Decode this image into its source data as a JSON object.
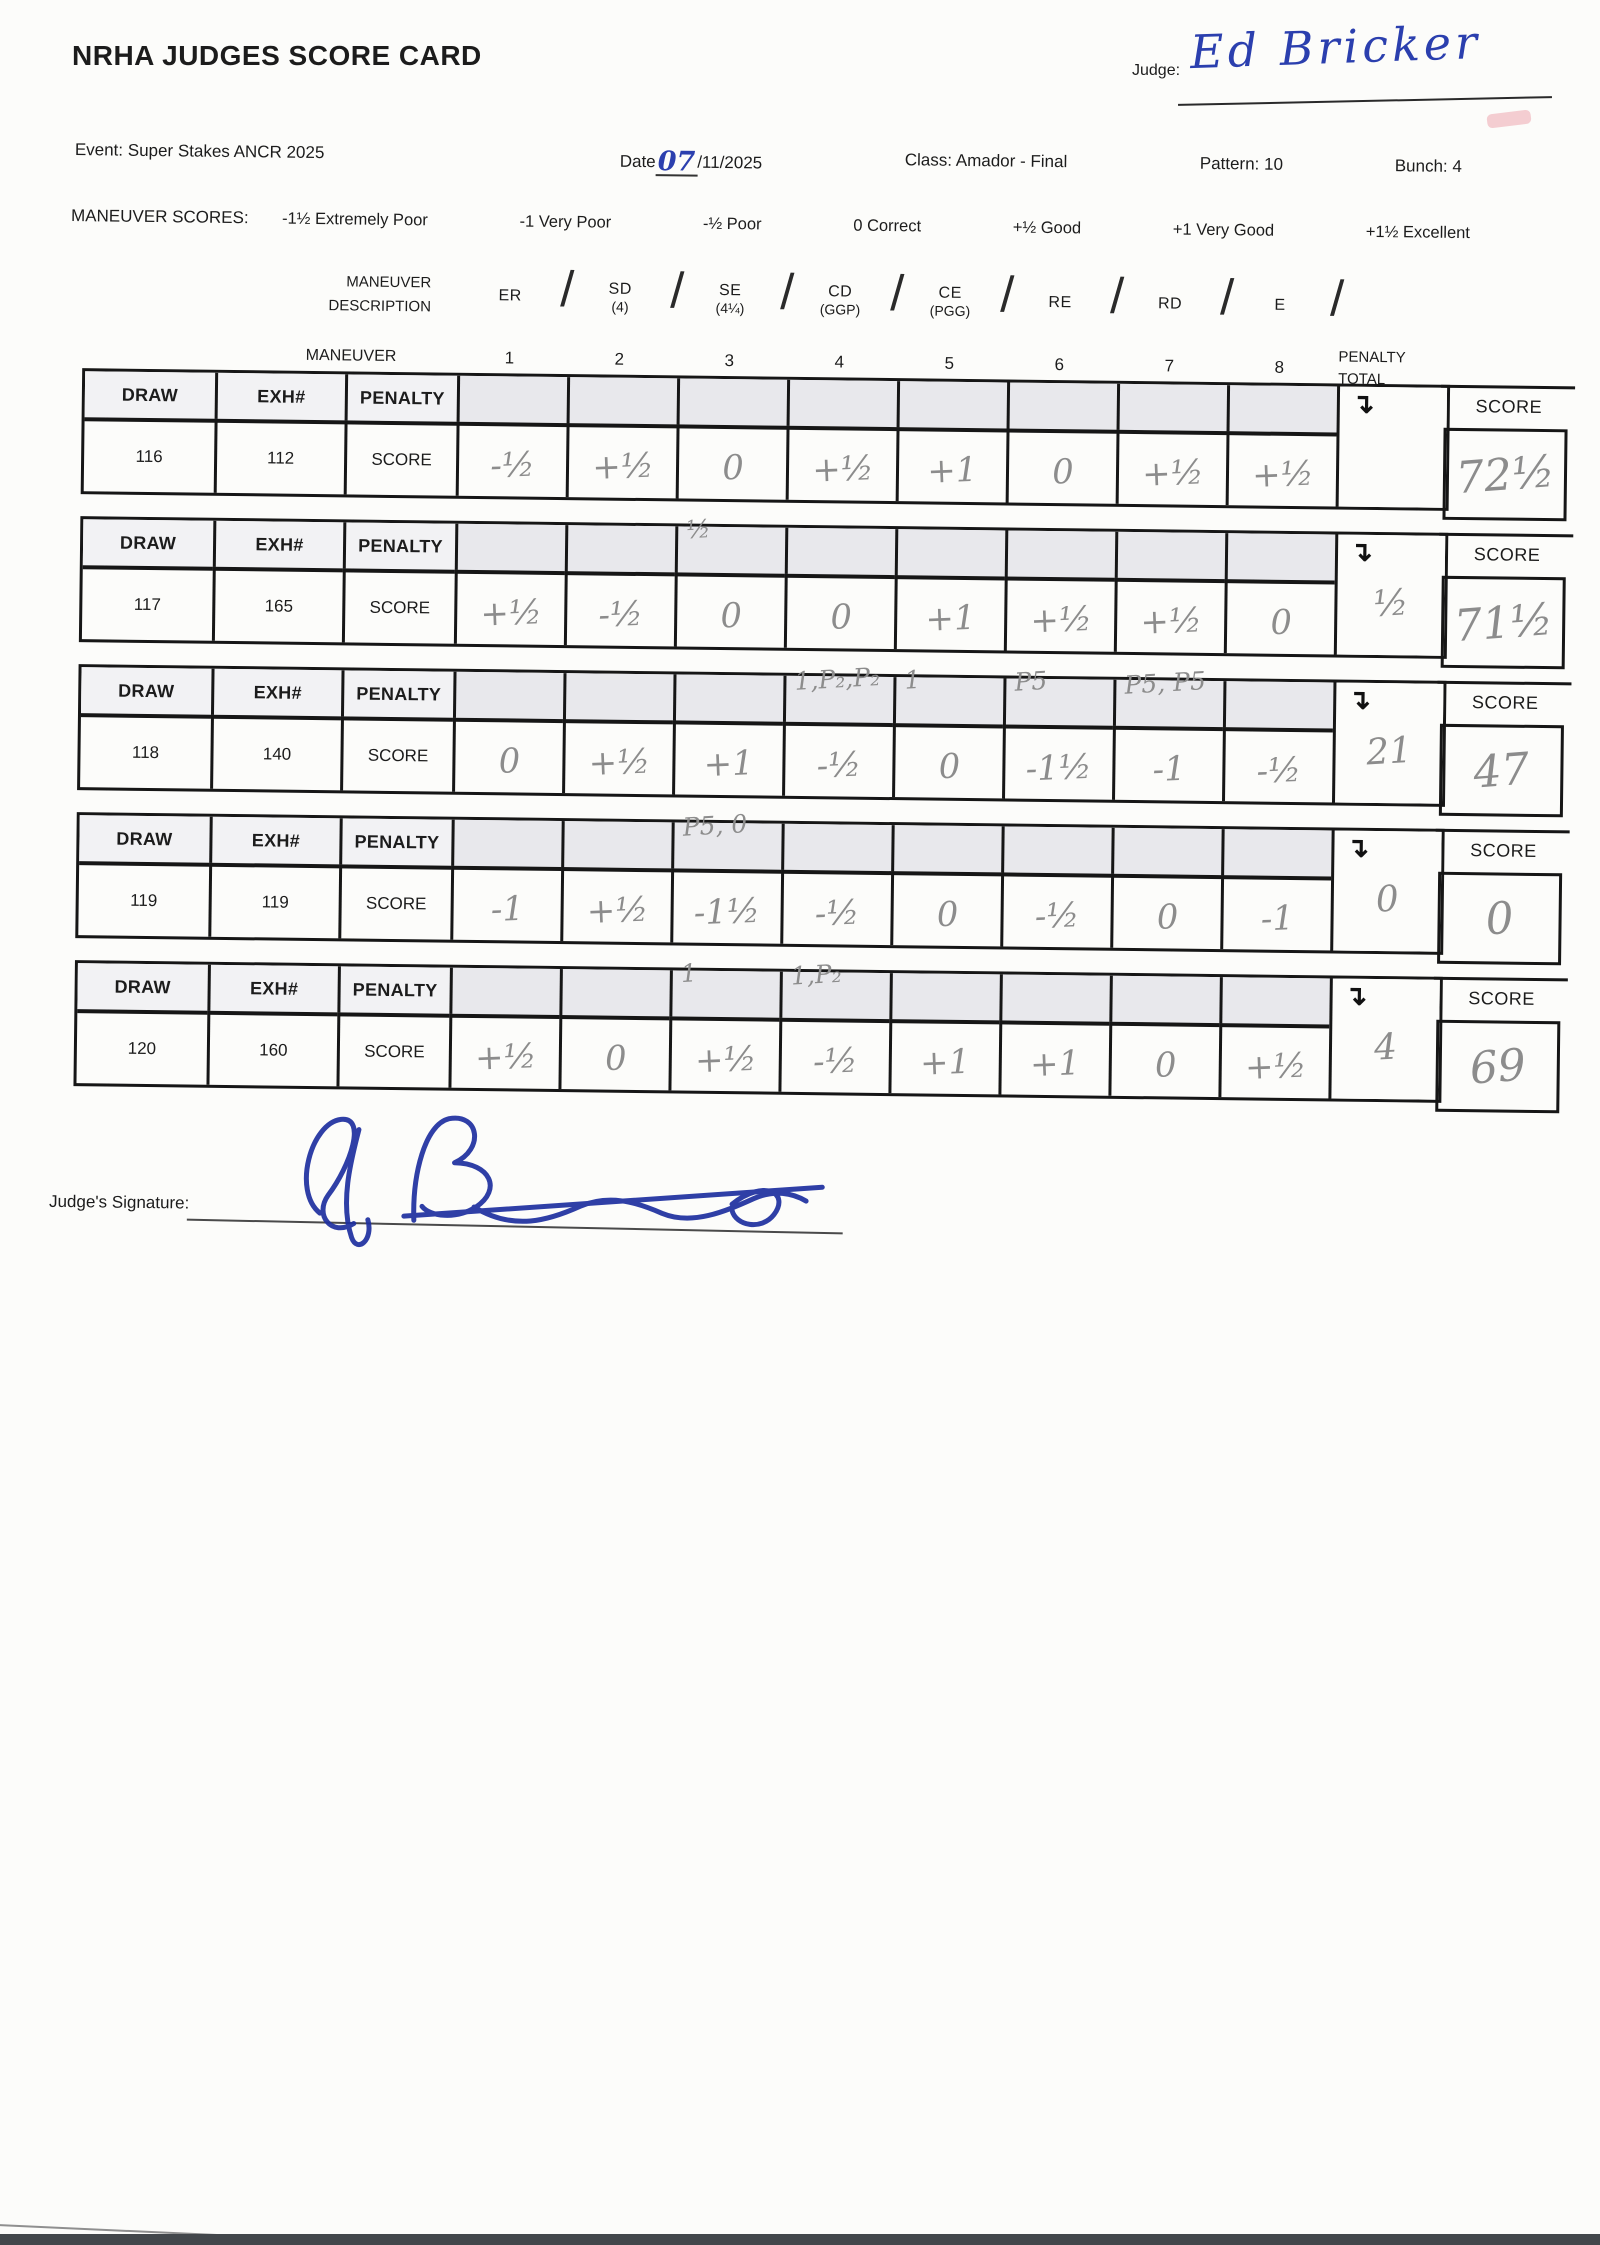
{
  "page": {
    "title": "NRHA JUDGES SCORE CARD"
  },
  "header": {
    "judge_label": "Judge:",
    "judge_name": "Ed Bricker",
    "event": "Event: Super Stakes ANCR 2025",
    "date_label": "Date",
    "date_day": "07",
    "date_rest": "/11/2025",
    "class": "Class: Amador - Final",
    "pattern": "Pattern: 10",
    "bunch": "Bunch: 4"
  },
  "legend": {
    "label": "MANEUVER SCORES:",
    "items": [
      "-1½ Extremely Poor",
      "-1 Very Poor",
      "-½ Poor",
      "0 Correct",
      "+½ Good",
      "+1 Very Good",
      "+1½ Excellent"
    ]
  },
  "maneuver_header": {
    "description_label_line1": "MANEUVER",
    "description_label_line2": "DESCRIPTION",
    "maneuver_label": "MANEUVER",
    "separator": "/",
    "descriptions": [
      {
        "abbr": "ER",
        "sub": ""
      },
      {
        "abbr": "SD",
        "sub": "(4)"
      },
      {
        "abbr": "SE",
        "sub": "(4¼)"
      },
      {
        "abbr": "CD",
        "sub": "(GGP)"
      },
      {
        "abbr": "CE",
        "sub": "(PGG)"
      },
      {
        "abbr": "RE",
        "sub": ""
      },
      {
        "abbr": "RD",
        "sub": ""
      },
      {
        "abbr": "E",
        "sub": ""
      }
    ],
    "numbers": [
      "1",
      "2",
      "3",
      "4",
      "5",
      "6",
      "7",
      "8"
    ],
    "penalty_total_line1": "PENALTY",
    "penalty_total_line2": "TOTAL"
  },
  "labels": {
    "draw": "DRAW",
    "exh": "EXH#",
    "penalty": "PENALTY",
    "score_row": "SCORE",
    "score_col": "SCORE",
    "arrow_icon": "↴"
  },
  "tables": [
    {
      "draw": "116",
      "exh": "112",
      "penalties": [
        "",
        "",
        "",
        "",
        "",
        "",
        "",
        ""
      ],
      "scores": [
        "-½",
        "+½",
        "0",
        "+½",
        "+1",
        "0",
        "+½",
        "+½"
      ],
      "penalty_total": "",
      "score": "72½"
    },
    {
      "draw": "117",
      "exh": "165",
      "penalties": [
        "",
        "",
        "½",
        "",
        "",
        "",
        "",
        ""
      ],
      "scores": [
        "+½",
        "-½",
        "0",
        "0",
        "+1",
        "+½",
        "+½",
        "0"
      ],
      "penalty_total": "½",
      "score": "71½"
    },
    {
      "draw": "118",
      "exh": "140",
      "penalties": [
        "",
        "",
        "",
        "1,P₂,P₂",
        "1",
        "P5",
        "P5, P5",
        ""
      ],
      "scores": [
        "0",
        "+½",
        "+1",
        "-½",
        "0",
        "-1½",
        "-1",
        "-½"
      ],
      "penalty_total": "21",
      "score": "47"
    },
    {
      "draw": "119",
      "exh": "119",
      "penalties": [
        "",
        "",
        "P5, 0",
        "",
        "",
        "",
        "",
        ""
      ],
      "scores": [
        "-1",
        "+½",
        "-1½",
        "-½",
        "0",
        "-½",
        "0",
        "-1"
      ],
      "penalty_total": "0",
      "score": "0"
    },
    {
      "draw": "120",
      "exh": "160",
      "penalties": [
        "",
        "",
        "1",
        "1,P₂",
        "",
        "",
        "",
        ""
      ],
      "scores": [
        "+½",
        "0",
        "+½",
        "-½",
        "+1",
        "+1",
        "0",
        "+½"
      ],
      "penalty_total": "4",
      "score": "69"
    }
  ],
  "footer": {
    "signature_label": "Judge's Signature:"
  }
}
